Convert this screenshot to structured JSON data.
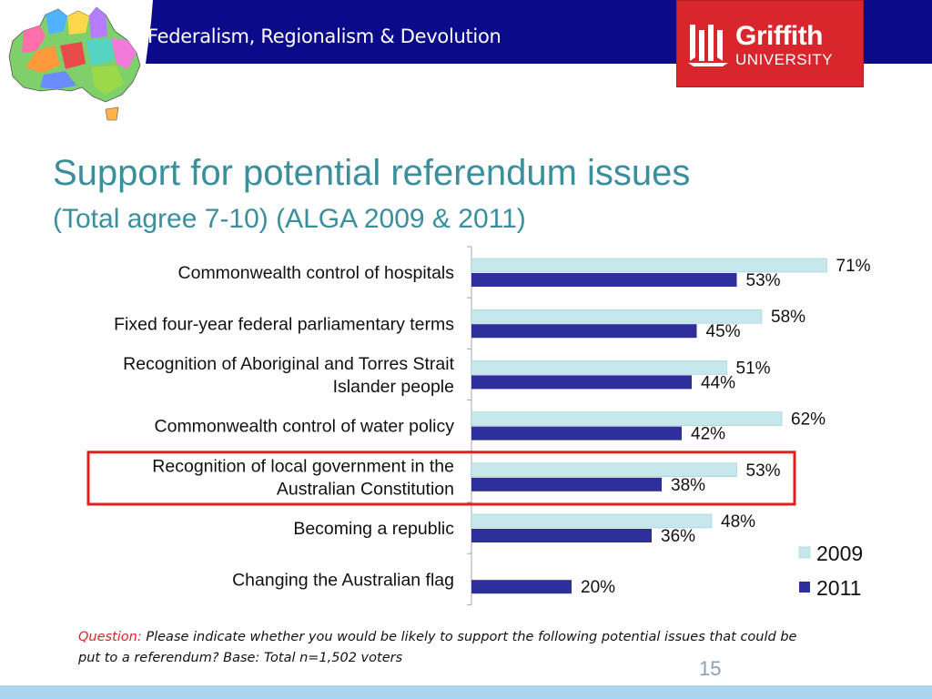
{
  "header": {
    "title": "Federalism, Regionalism & Devolution",
    "logo_name": "Griffith",
    "logo_sub": "UNIVERSITY",
    "map_icon": "australia-map-icon"
  },
  "slide": {
    "title": "Support for potential referendum issues",
    "subtitle": "(Total agree 7-10) (ALGA 2009 & 2011)"
  },
  "chart_data": {
    "type": "bar",
    "orientation": "horizontal",
    "categories": [
      [
        "Commonwealth control of hospitals"
      ],
      [
        "Fixed four-year federal parliamentary terms"
      ],
      [
        "Recognition of Aboriginal and Torres Strait",
        "Islander people"
      ],
      [
        "Commonwealth control of water policy"
      ],
      [
        "Recognition of local government in the",
        "Australian Constitution"
      ],
      [
        "Becoming a republic"
      ],
      [
        "Changing the Australian flag"
      ]
    ],
    "series": [
      {
        "name": "2009",
        "color": "#c6e8ec",
        "values": [
          71,
          58,
          51,
          62,
          53,
          48,
          null
        ],
        "labels": [
          "71%",
          "58%",
          "51%",
          "62%",
          "53%",
          "48%",
          null
        ]
      },
      {
        "name": "2011",
        "color": "#2e2e9c",
        "values": [
          53,
          45,
          44,
          42,
          38,
          36,
          20
        ],
        "labels": [
          "53%",
          "45%",
          "44%",
          "42%",
          "38%",
          "36%",
          "20%"
        ]
      }
    ],
    "highlighted_category_index": 4,
    "highlight_color": "#e02020",
    "legend_position": "bottom-right",
    "xlim": [
      0,
      80
    ],
    "grid": false
  },
  "footnote": {
    "question_label": "Question:",
    "question_text": "Please indicate whether you would be likely to support the following potential issues that could be put to a referendum? Base: Total n=1,502 voters"
  },
  "page_number": "15"
}
